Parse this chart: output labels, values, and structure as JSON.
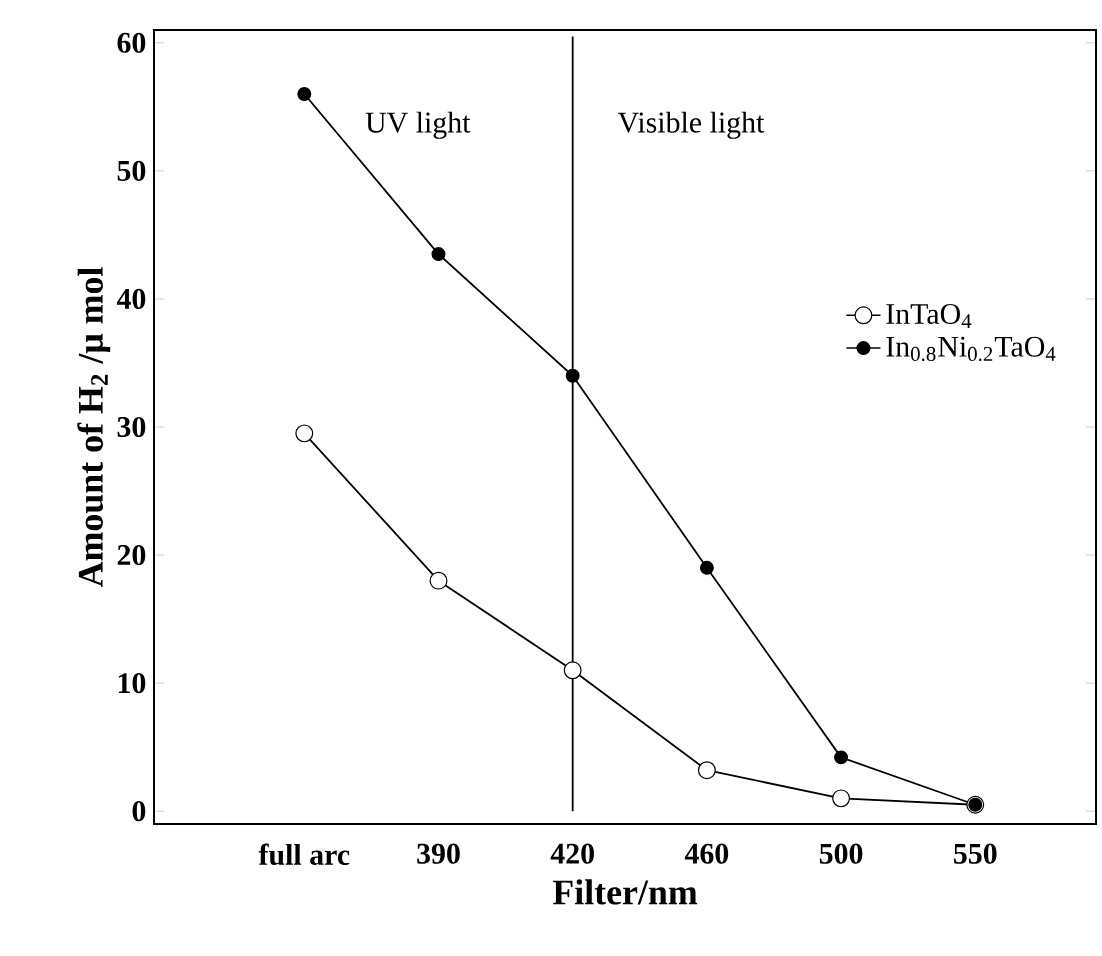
{
  "chart_data": {
    "type": "line",
    "xlabel": "Filter/nm",
    "ylabel": "Amount of H$_{2}$ /μ mol",
    "categories": [
      "full arc",
      "390",
      "420",
      "460",
      "500",
      "550"
    ],
    "series": [
      {
        "name": "InTaO$_{4}$",
        "color": "#000000",
        "values": [
          29.5,
          18,
          11,
          3.2,
          1,
          0.5
        ]
      },
      {
        "name": "In$_{0.8}$Ni$_{0.2}$TaO$_{4}$",
        "color": "#000000",
        "values": [
          56,
          43.5,
          34,
          19,
          4.2,
          0.5
        ]
      }
    ],
    "ylim": [
      -1,
      61
    ],
    "yticks": [
      0,
      10,
      20,
      30,
      40,
      50,
      60
    ],
    "ref_lines": [
      {
        "axis": "x",
        "value": "420",
        "color": "#000000",
        "line_style": "solid"
      }
    ],
    "annotations": [
      "UV light",
      "Visible light"
    ],
    "legend": "right",
    "marker": "circle",
    "line_style": "solid",
    "grid": false
  }
}
